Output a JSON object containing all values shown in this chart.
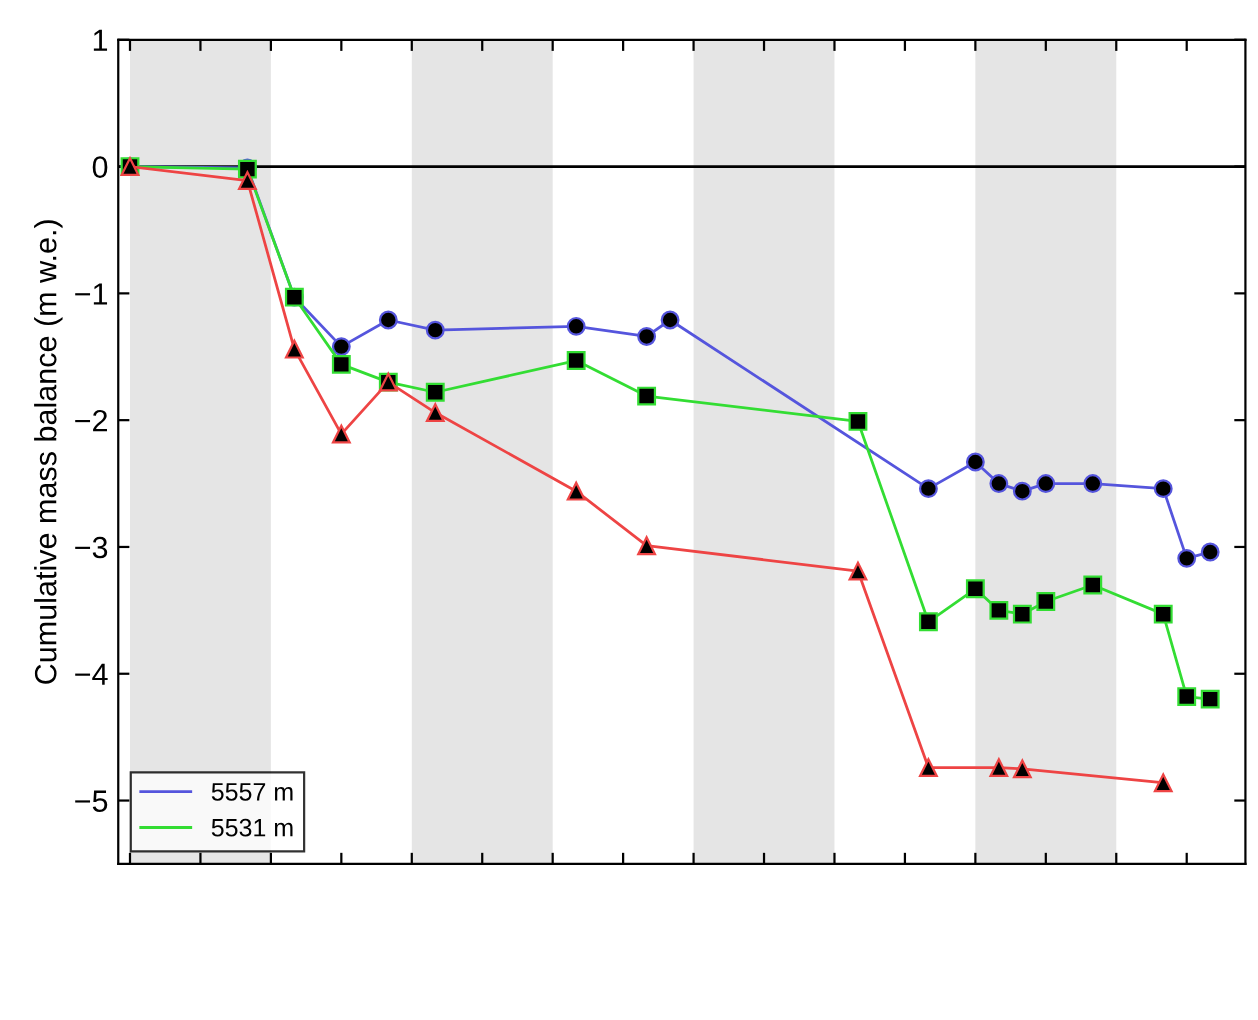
{
  "chart_data": {
    "type": "line",
    "ylabel": "Cumulative mass balance (m w.e.)",
    "categories": [
      null,
      null,
      null,
      null,
      null,
      null,
      null,
      null,
      null,
      null,
      null,
      null,
      null,
      null,
      null,
      null,
      null,
      null,
      null,
      null,
      null,
      null,
      null,
      null,
      null,
      null,
      null,
      null,
      null,
      null,
      null,
      null,
      null,
      null,
      null,
      null,
      null,
      null,
      null,
      null,
      null,
      null,
      null,
      null,
      null,
      null,
      null,
      null
    ],
    "ylim": [
      -5.5,
      1
    ],
    "yticks": [
      {
        "value": -5,
        "label": "−5"
      },
      {
        "value": -4,
        "label": "−4"
      },
      {
        "value": -3,
        "label": "−3"
      },
      {
        "value": -2,
        "label": "−2"
      },
      {
        "value": -1,
        "label": "−1"
      },
      {
        "value": 0,
        "label": "0"
      },
      {
        "value": 1,
        "label": "1"
      }
    ],
    "grid": false,
    "legend": "bottom left",
    "ref_lines": [
      {
        "axis": "y",
        "value": 0,
        "color": "#000000"
      }
    ],
    "series": [
      {
        "name": "5557 m",
        "color": "#5555dd",
        "marker": "circle",
        "values": [
          0,
          null,
          null,
          null,
          null,
          -0.01,
          null,
          -1.03,
          null,
          -1.42,
          null,
          -1.21,
          null,
          -1.29,
          null,
          null,
          null,
          null,
          null,
          -1.26,
          null,
          null,
          -1.34,
          -1.21,
          null,
          null,
          null,
          null,
          null,
          null,
          null,
          null,
          null,
          null,
          -2.54,
          null,
          -2.33,
          -2.5,
          -2.56,
          -2.5,
          null,
          -2.5,
          null,
          null,
          -2.54,
          -3.09,
          -3.04,
          null
        ]
      },
      {
        "name": "5531 m",
        "color": "#33dd33",
        "marker": "square",
        "values": [
          0,
          null,
          null,
          null,
          null,
          -0.02,
          null,
          -1.03,
          null,
          -1.56,
          null,
          -1.7,
          null,
          -1.78,
          null,
          null,
          null,
          null,
          null,
          -1.53,
          null,
          null,
          -1.81,
          null,
          null,
          null,
          null,
          null,
          null,
          null,
          null,
          -2.01,
          null,
          null,
          -3.59,
          null,
          -3.33,
          -3.5,
          -3.53,
          -3.43,
          null,
          -3.3,
          null,
          null,
          -3.53,
          -4.18,
          -4.2,
          null
        ]
      },
      {
        "color": "#ee4444",
        "marker": "triangle",
        "values": [
          0,
          null,
          null,
          null,
          null,
          -0.11,
          null,
          -1.44,
          null,
          -2.11,
          null,
          -1.7,
          null,
          -1.94,
          null,
          null,
          null,
          null,
          null,
          -2.56,
          null,
          null,
          -2.99,
          null,
          null,
          null,
          null,
          null,
          null,
          null,
          null,
          -3.19,
          null,
          null,
          -4.74,
          null,
          null,
          -4.74,
          -4.75,
          null,
          null,
          null,
          null,
          null,
          -4.86,
          null,
          null,
          null
        ]
      }
    ]
  }
}
